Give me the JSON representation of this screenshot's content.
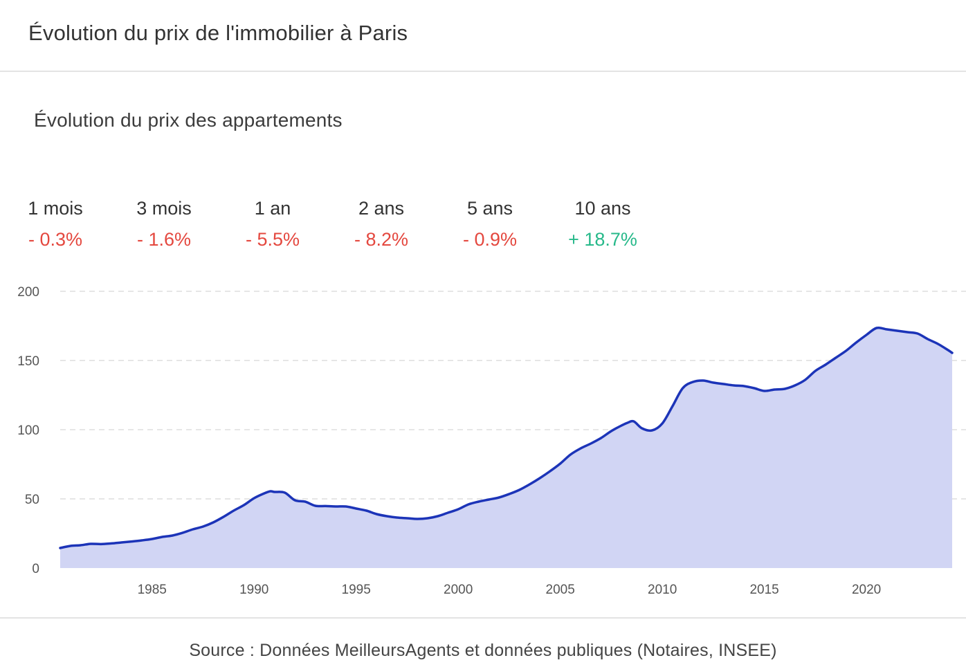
{
  "card": {
    "title": "Évolution du prix de l'immobilier à Paris"
  },
  "section": {
    "title": "Évolution du prix des appartements"
  },
  "stats": [
    {
      "label": "1 mois",
      "value": "- 0.3%",
      "trend": "neg"
    },
    {
      "label": "3 mois",
      "value": "- 1.6%",
      "trend": "neg"
    },
    {
      "label": "1 an",
      "value": "- 5.5%",
      "trend": "neg"
    },
    {
      "label": "2 ans",
      "value": "- 8.2%",
      "trend": "neg"
    },
    {
      "label": "5 ans",
      "value": "- 0.9%",
      "trend": "neg"
    },
    {
      "label": "10 ans",
      "value": "+ 18.7%",
      "trend": "pos"
    }
  ],
  "colors": {
    "negative": "#e4483f",
    "positive": "#27b98a",
    "line": "#1c34b8",
    "area": "#d1d5f4",
    "grid": "#dddddd"
  },
  "chart_data": {
    "type": "area",
    "title": "",
    "xlabel": "",
    "ylabel": "",
    "xlim": [
      1980.5,
      2024.2
    ],
    "ylim": [
      0,
      200
    ],
    "x_ticks": [
      1985,
      1990,
      1995,
      2000,
      2005,
      2010,
      2015,
      2020
    ],
    "y_ticks": [
      0,
      50,
      100,
      150,
      200
    ],
    "grid": "horizontal dashed",
    "legend": "none",
    "series": [
      {
        "name": "",
        "x": [
          1980.5,
          1981.0,
          1981.5,
          1982.0,
          1982.5,
          1983.0,
          1983.5,
          1984.0,
          1984.5,
          1985.0,
          1985.5,
          1986.0,
          1986.5,
          1987.0,
          1987.5,
          1988.0,
          1988.5,
          1989.0,
          1989.5,
          1990.0,
          1990.5,
          1990.8,
          1991.0,
          1991.5,
          1992.0,
          1992.5,
          1993.0,
          1993.5,
          1994.0,
          1994.5,
          1995.0,
          1995.5,
          1996.0,
          1996.5,
          1997.0,
          1997.5,
          1998.0,
          1998.5,
          1999.0,
          1999.5,
          2000.0,
          2000.5,
          2001.0,
          2001.5,
          2002.0,
          2002.5,
          2003.0,
          2003.5,
          2004.0,
          2004.5,
          2005.0,
          2005.5,
          2006.0,
          2006.5,
          2007.0,
          2007.5,
          2008.0,
          2008.3,
          2008.6,
          2009.0,
          2009.5,
          2010.0,
          2010.5,
          2011.0,
          2011.5,
          2012.0,
          2012.5,
          2013.0,
          2013.5,
          2014.0,
          2014.5,
          2015.0,
          2015.5,
          2016.0,
          2016.5,
          2017.0,
          2017.5,
          2018.0,
          2018.5,
          2019.0,
          2019.5,
          2020.0,
          2020.5,
          2021.0,
          2021.5,
          2022.0,
          2022.5,
          2023.0,
          2023.5,
          2024.0,
          2024.2
        ],
        "values": [
          14.5,
          16,
          16.5,
          17.5,
          17.3,
          17.8,
          18.5,
          19.2,
          20,
          21,
          22.5,
          23.5,
          25.5,
          28,
          30,
          33,
          37,
          41.5,
          45.5,
          50.5,
          54,
          55.5,
          55,
          54.5,
          49,
          48,
          45,
          44.8,
          44.5,
          44.5,
          43,
          41.5,
          39,
          37.5,
          36.5,
          36,
          35.5,
          36,
          37.5,
          40,
          42.5,
          46,
          48,
          49.5,
          51,
          53.5,
          56.5,
          60.5,
          65,
          70,
          75.5,
          82,
          86.5,
          90,
          94,
          99,
          103,
          105,
          106,
          101,
          99.5,
          104.5,
          117,
          130,
          134.5,
          135.5,
          134,
          133,
          132,
          131.5,
          130,
          128,
          129,
          129.5,
          132,
          136,
          142.5,
          147,
          152,
          157,
          163,
          168.5,
          173.5,
          172.5,
          171.5,
          170.5,
          169.5,
          165.5,
          162,
          157.5,
          155.5
        ]
      }
    ]
  },
  "source": {
    "text": "Source : Données MeilleursAgents et données publiques (Notaires, INSEE)"
  }
}
